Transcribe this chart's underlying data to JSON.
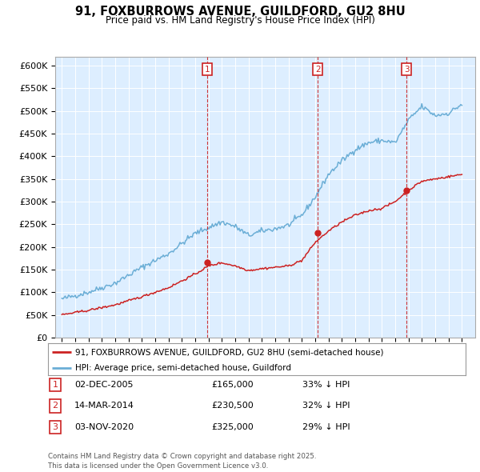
{
  "title": "91, FOXBURROWS AVENUE, GUILDFORD, GU2 8HU",
  "subtitle": "Price paid vs. HM Land Registry's House Price Index (HPI)",
  "hpi_color": "#6baed6",
  "price_color": "#cc2222",
  "plot_bg": "#ddeeff",
  "ylim": [
    0,
    620000
  ],
  "yticks": [
    0,
    50000,
    100000,
    150000,
    200000,
    250000,
    300000,
    350000,
    400000,
    450000,
    500000,
    550000,
    600000
  ],
  "xlim_start": 1994.5,
  "xlim_end": 2026.0,
  "purchases": [
    {
      "label": "1",
      "year": 2005.92,
      "price": 165000,
      "date": "02-DEC-2005",
      "pct": "33% ↓ HPI"
    },
    {
      "label": "2",
      "year": 2014.2,
      "price": 230500,
      "date": "14-MAR-2014",
      "pct": "32% ↓ HPI"
    },
    {
      "label": "3",
      "year": 2020.84,
      "price": 325000,
      "date": "03-NOV-2020",
      "pct": "29% ↓ HPI"
    }
  ],
  "legend_line1": "91, FOXBURROWS AVENUE, GUILDFORD, GU2 8HU (semi-detached house)",
  "legend_line2": "HPI: Average price, semi-detached house, Guildford",
  "footer": "Contains HM Land Registry data © Crown copyright and database right 2025.\nThis data is licensed under the Open Government Licence v3.0.",
  "hpi_anchors_x": [
    1995,
    1997,
    1999,
    2001,
    2003,
    2005,
    2007,
    2008,
    2009,
    2010,
    2011,
    2012,
    2013,
    2014,
    2015,
    2016,
    2017,
    2018,
    2019,
    2020,
    2021,
    2022,
    2023,
    2024,
    2025
  ],
  "hpi_anchors_y": [
    85000,
    100000,
    120000,
    155000,
    185000,
    230000,
    255000,
    245000,
    225000,
    235000,
    240000,
    248000,
    270000,
    310000,
    360000,
    390000,
    415000,
    430000,
    435000,
    430000,
    480000,
    510000,
    490000,
    495000,
    515000
  ],
  "price_anchors_x": [
    1995,
    1997,
    1999,
    2001,
    2003,
    2005,
    2006,
    2007,
    2008,
    2009,
    2010,
    2011,
    2012,
    2013,
    2014,
    2015,
    2016,
    2017,
    2018,
    2019,
    2020,
    2021,
    2022,
    2023,
    2024,
    2025
  ],
  "price_anchors_y": [
    50000,
    60000,
    72000,
    90000,
    110000,
    140000,
    158000,
    165000,
    158000,
    148000,
    152000,
    155000,
    158000,
    170000,
    210000,
    235000,
    255000,
    270000,
    280000,
    285000,
    300000,
    325000,
    345000,
    350000,
    355000,
    360000
  ]
}
